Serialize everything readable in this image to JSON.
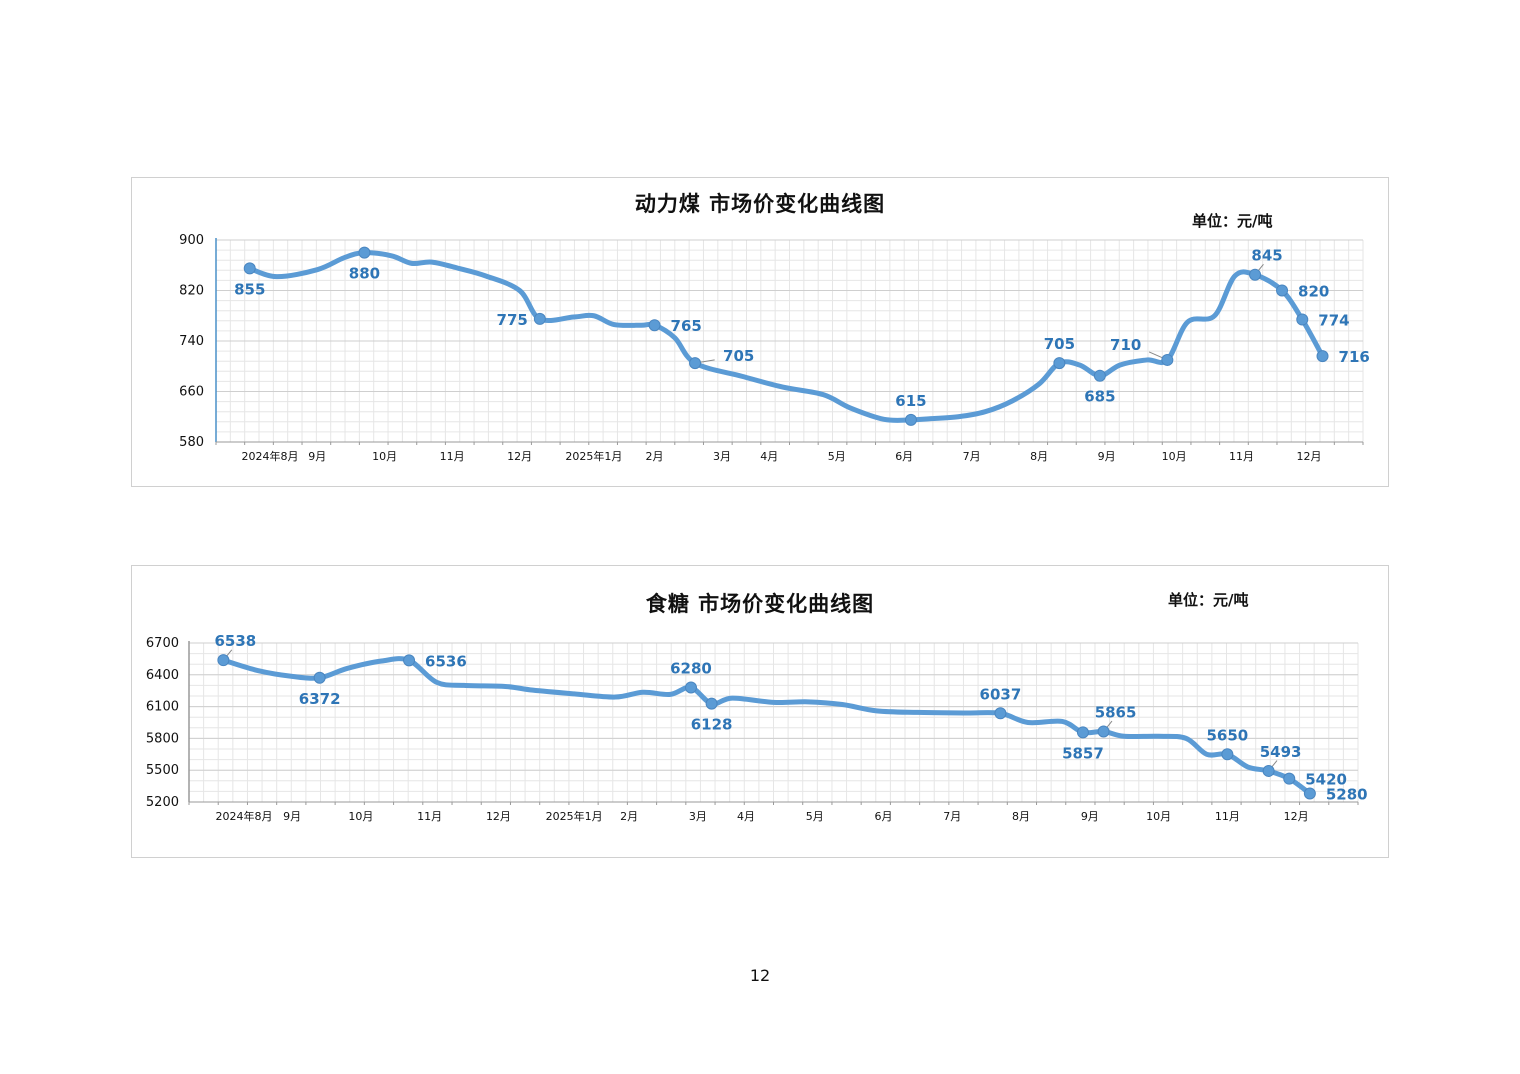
{
  "page": {
    "number": "12"
  },
  "colors": {
    "line": "#5b9bd5",
    "label": "#2e75b6",
    "grid": "#e6e6e6",
    "axis": "#4a90c8"
  },
  "chart_data": [
    {
      "type": "line",
      "title": "动力煤  市场价变化曲线图",
      "unit": "单位：元/吨",
      "ylim": [
        580,
        900
      ],
      "yticks": [
        900,
        820,
        740,
        660,
        580
      ],
      "x_domain": [
        0,
        17
      ],
      "xticks": [
        {
          "x": 0.8,
          "label": "2024年8月"
        },
        {
          "x": 1.5,
          "label": "9月"
        },
        {
          "x": 2.5,
          "label": "10月"
        },
        {
          "x": 3.5,
          "label": "11月"
        },
        {
          "x": 4.5,
          "label": "12月"
        },
        {
          "x": 5.6,
          "label": "2025年1月"
        },
        {
          "x": 6.5,
          "label": "2月"
        },
        {
          "x": 7.5,
          "label": "3月"
        },
        {
          "x": 8.2,
          "label": "4月"
        },
        {
          "x": 9.2,
          "label": "5月"
        },
        {
          "x": 10.2,
          "label": "6月"
        },
        {
          "x": 11.2,
          "label": "7月"
        },
        {
          "x": 12.2,
          "label": "8月"
        },
        {
          "x": 13.2,
          "label": "9月"
        },
        {
          "x": 14.2,
          "label": "10月"
        },
        {
          "x": 15.2,
          "label": "11月"
        },
        {
          "x": 16.2,
          "label": "12月"
        }
      ],
      "series": [
        {
          "values": [
            [
              0.5,
              855
            ],
            [
              0.9,
              842
            ],
            [
              1.5,
              853
            ],
            [
              1.9,
              872
            ],
            [
              2.2,
              880
            ],
            [
              2.6,
              875
            ],
            [
              2.9,
              863
            ],
            [
              3.2,
              865
            ],
            [
              3.6,
              855
            ],
            [
              4.0,
              843
            ],
            [
              4.5,
              820
            ],
            [
              4.8,
              775
            ],
            [
              5.3,
              778
            ],
            [
              5.6,
              780
            ],
            [
              5.9,
              766
            ],
            [
              6.3,
              765
            ],
            [
              6.5,
              765
            ],
            [
              6.8,
              745
            ],
            [
              7.1,
              705
            ],
            [
              7.8,
              684
            ],
            [
              8.4,
              667
            ],
            [
              9.0,
              655
            ],
            [
              9.4,
              634
            ],
            [
              9.9,
              616
            ],
            [
              10.3,
              615
            ],
            [
              10.6,
              617
            ],
            [
              11.0,
              620
            ],
            [
              11.4,
              628
            ],
            [
              11.8,
              645
            ],
            [
              12.2,
              672
            ],
            [
              12.5,
              705
            ],
            [
              12.8,
              702
            ],
            [
              13.1,
              685
            ],
            [
              13.4,
              702
            ],
            [
              13.8,
              710
            ],
            [
              14.1,
              710
            ],
            [
              14.4,
              770
            ],
            [
              14.8,
              780
            ],
            [
              15.1,
              843
            ],
            [
              15.4,
              845
            ],
            [
              15.8,
              820
            ],
            [
              16.1,
              774
            ],
            [
              16.4,
              716
            ]
          ],
          "markers": [
            {
              "x": 0.5,
              "y": 855,
              "label": "855",
              "pos": "below"
            },
            {
              "x": 2.2,
              "y": 880,
              "label": "880",
              "pos": "below"
            },
            {
              "x": 4.8,
              "y": 775,
              "label": "775",
              "pos": "left"
            },
            {
              "x": 6.5,
              "y": 765,
              "label": "765",
              "pos": "right"
            },
            {
              "x": 7.1,
              "y": 705,
              "label": "705",
              "pos": "right-up"
            },
            {
              "x": 10.3,
              "y": 615,
              "label": "615",
              "pos": "above"
            },
            {
              "x": 12.5,
              "y": 705,
              "label": "705",
              "pos": "above"
            },
            {
              "x": 13.1,
              "y": 685,
              "label": "685",
              "pos": "below"
            },
            {
              "x": 14.1,
              "y": 710,
              "label": "710",
              "pos": "left-up"
            },
            {
              "x": 15.4,
              "y": 845,
              "label": "845",
              "pos": "above-right"
            },
            {
              "x": 15.8,
              "y": 820,
              "label": "820",
              "pos": "right"
            },
            {
              "x": 16.1,
              "y": 774,
              "label": "774",
              "pos": "right"
            },
            {
              "x": 16.4,
              "y": 716,
              "label": "716",
              "pos": "right"
            }
          ]
        }
      ]
    },
    {
      "type": "line",
      "title": "食糖  市场价变化曲线图",
      "unit": "单位：元/吨",
      "ylim": [
        5200,
        6700
      ],
      "yticks": [
        6700,
        6400,
        6100,
        5800,
        5500,
        5200
      ],
      "x_domain": [
        0,
        17
      ],
      "xticks": [
        {
          "x": 0.8,
          "label": "2024年8月"
        },
        {
          "x": 1.5,
          "label": "9月"
        },
        {
          "x": 2.5,
          "label": "10月"
        },
        {
          "x": 3.5,
          "label": "11月"
        },
        {
          "x": 4.5,
          "label": "12月"
        },
        {
          "x": 5.6,
          "label": "2025年1月"
        },
        {
          "x": 6.4,
          "label": "2月"
        },
        {
          "x": 7.4,
          "label": "3月"
        },
        {
          "x": 8.1,
          "label": "4月"
        },
        {
          "x": 9.1,
          "label": "5月"
        },
        {
          "x": 10.1,
          "label": "6月"
        },
        {
          "x": 11.1,
          "label": "7月"
        },
        {
          "x": 12.1,
          "label": "8月"
        },
        {
          "x": 13.1,
          "label": "9月"
        },
        {
          "x": 14.1,
          "label": "10月"
        },
        {
          "x": 15.1,
          "label": "11月"
        },
        {
          "x": 16.1,
          "label": "12月"
        }
      ],
      "series": [
        {
          "values": [
            [
              0.5,
              6538
            ],
            [
              1.0,
              6440
            ],
            [
              1.5,
              6385
            ],
            [
              1.9,
              6372
            ],
            [
              2.3,
              6460
            ],
            [
              2.8,
              6530
            ],
            [
              3.2,
              6536
            ],
            [
              3.6,
              6330
            ],
            [
              4.0,
              6300
            ],
            [
              4.6,
              6290
            ],
            [
              5.0,
              6255
            ],
            [
              5.6,
              6220
            ],
            [
              6.2,
              6190
            ],
            [
              6.6,
              6235
            ],
            [
              7.0,
              6215
            ],
            [
              7.3,
              6280
            ],
            [
              7.6,
              6128
            ],
            [
              7.9,
              6180
            ],
            [
              8.5,
              6140
            ],
            [
              9.0,
              6145
            ],
            [
              9.5,
              6120
            ],
            [
              10.0,
              6060
            ],
            [
              10.6,
              6045
            ],
            [
              11.3,
              6040
            ],
            [
              11.8,
              6037
            ],
            [
              12.2,
              5950
            ],
            [
              12.7,
              5960
            ],
            [
              13.0,
              5857
            ],
            [
              13.3,
              5865
            ],
            [
              13.6,
              5820
            ],
            [
              14.1,
              5820
            ],
            [
              14.5,
              5800
            ],
            [
              14.8,
              5650
            ],
            [
              15.1,
              5650
            ],
            [
              15.4,
              5530
            ],
            [
              15.7,
              5493
            ],
            [
              16.0,
              5420
            ],
            [
              16.3,
              5280
            ]
          ],
          "markers": [
            {
              "x": 0.5,
              "y": 6538,
              "label": "6538",
              "pos": "above-right"
            },
            {
              "x": 1.9,
              "y": 6372,
              "label": "6372",
              "pos": "below"
            },
            {
              "x": 3.2,
              "y": 6536,
              "label": "6536",
              "pos": "right"
            },
            {
              "x": 7.3,
              "y": 6280,
              "label": "6280",
              "pos": "above"
            },
            {
              "x": 7.6,
              "y": 6128,
              "label": "6128",
              "pos": "below"
            },
            {
              "x": 11.8,
              "y": 6037,
              "label": "6037",
              "pos": "above"
            },
            {
              "x": 13.0,
              "y": 5857,
              "label": "5857",
              "pos": "below"
            },
            {
              "x": 13.3,
              "y": 5865,
              "label": "5865",
              "pos": "above-right"
            },
            {
              "x": 15.1,
              "y": 5650,
              "label": "5650",
              "pos": "above"
            },
            {
              "x": 15.7,
              "y": 5493,
              "label": "5493",
              "pos": "above-right"
            },
            {
              "x": 16.0,
              "y": 5420,
              "label": "5420",
              "pos": "right"
            },
            {
              "x": 16.3,
              "y": 5280,
              "label": "5280",
              "pos": "right"
            }
          ]
        }
      ]
    }
  ]
}
